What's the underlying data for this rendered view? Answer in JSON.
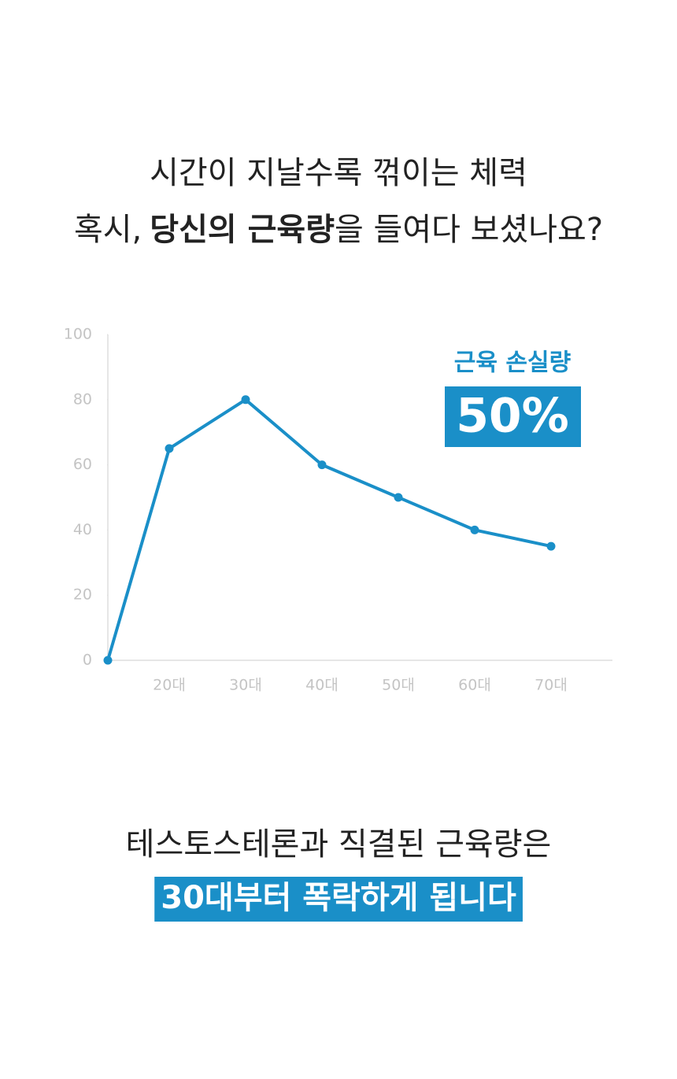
{
  "headline": {
    "line1": "시간이 지날수록 꺾이는 체력",
    "line2": [
      "혹시,",
      "당신의 근육량",
      "을 들여다 보셨나요?"
    ]
  },
  "chart_data": {
    "type": "line",
    "categories": [
      null,
      "20대",
      "30대",
      "40대",
      "50대",
      "60대",
      "70대"
    ],
    "values": [
      0,
      65,
      80,
      60,
      50,
      40,
      35
    ],
    "color": "#1a8fc8",
    "ylim": [
      0,
      100
    ],
    "yticks": [
      0,
      20,
      40,
      60,
      80,
      100
    ],
    "annotation": {
      "label": "근육 손실량",
      "value": "50%"
    }
  },
  "footer": {
    "line1": "테스토스테론과 직결된 근육량은",
    "highlight": "30대부터 폭락하게 됩니다"
  }
}
